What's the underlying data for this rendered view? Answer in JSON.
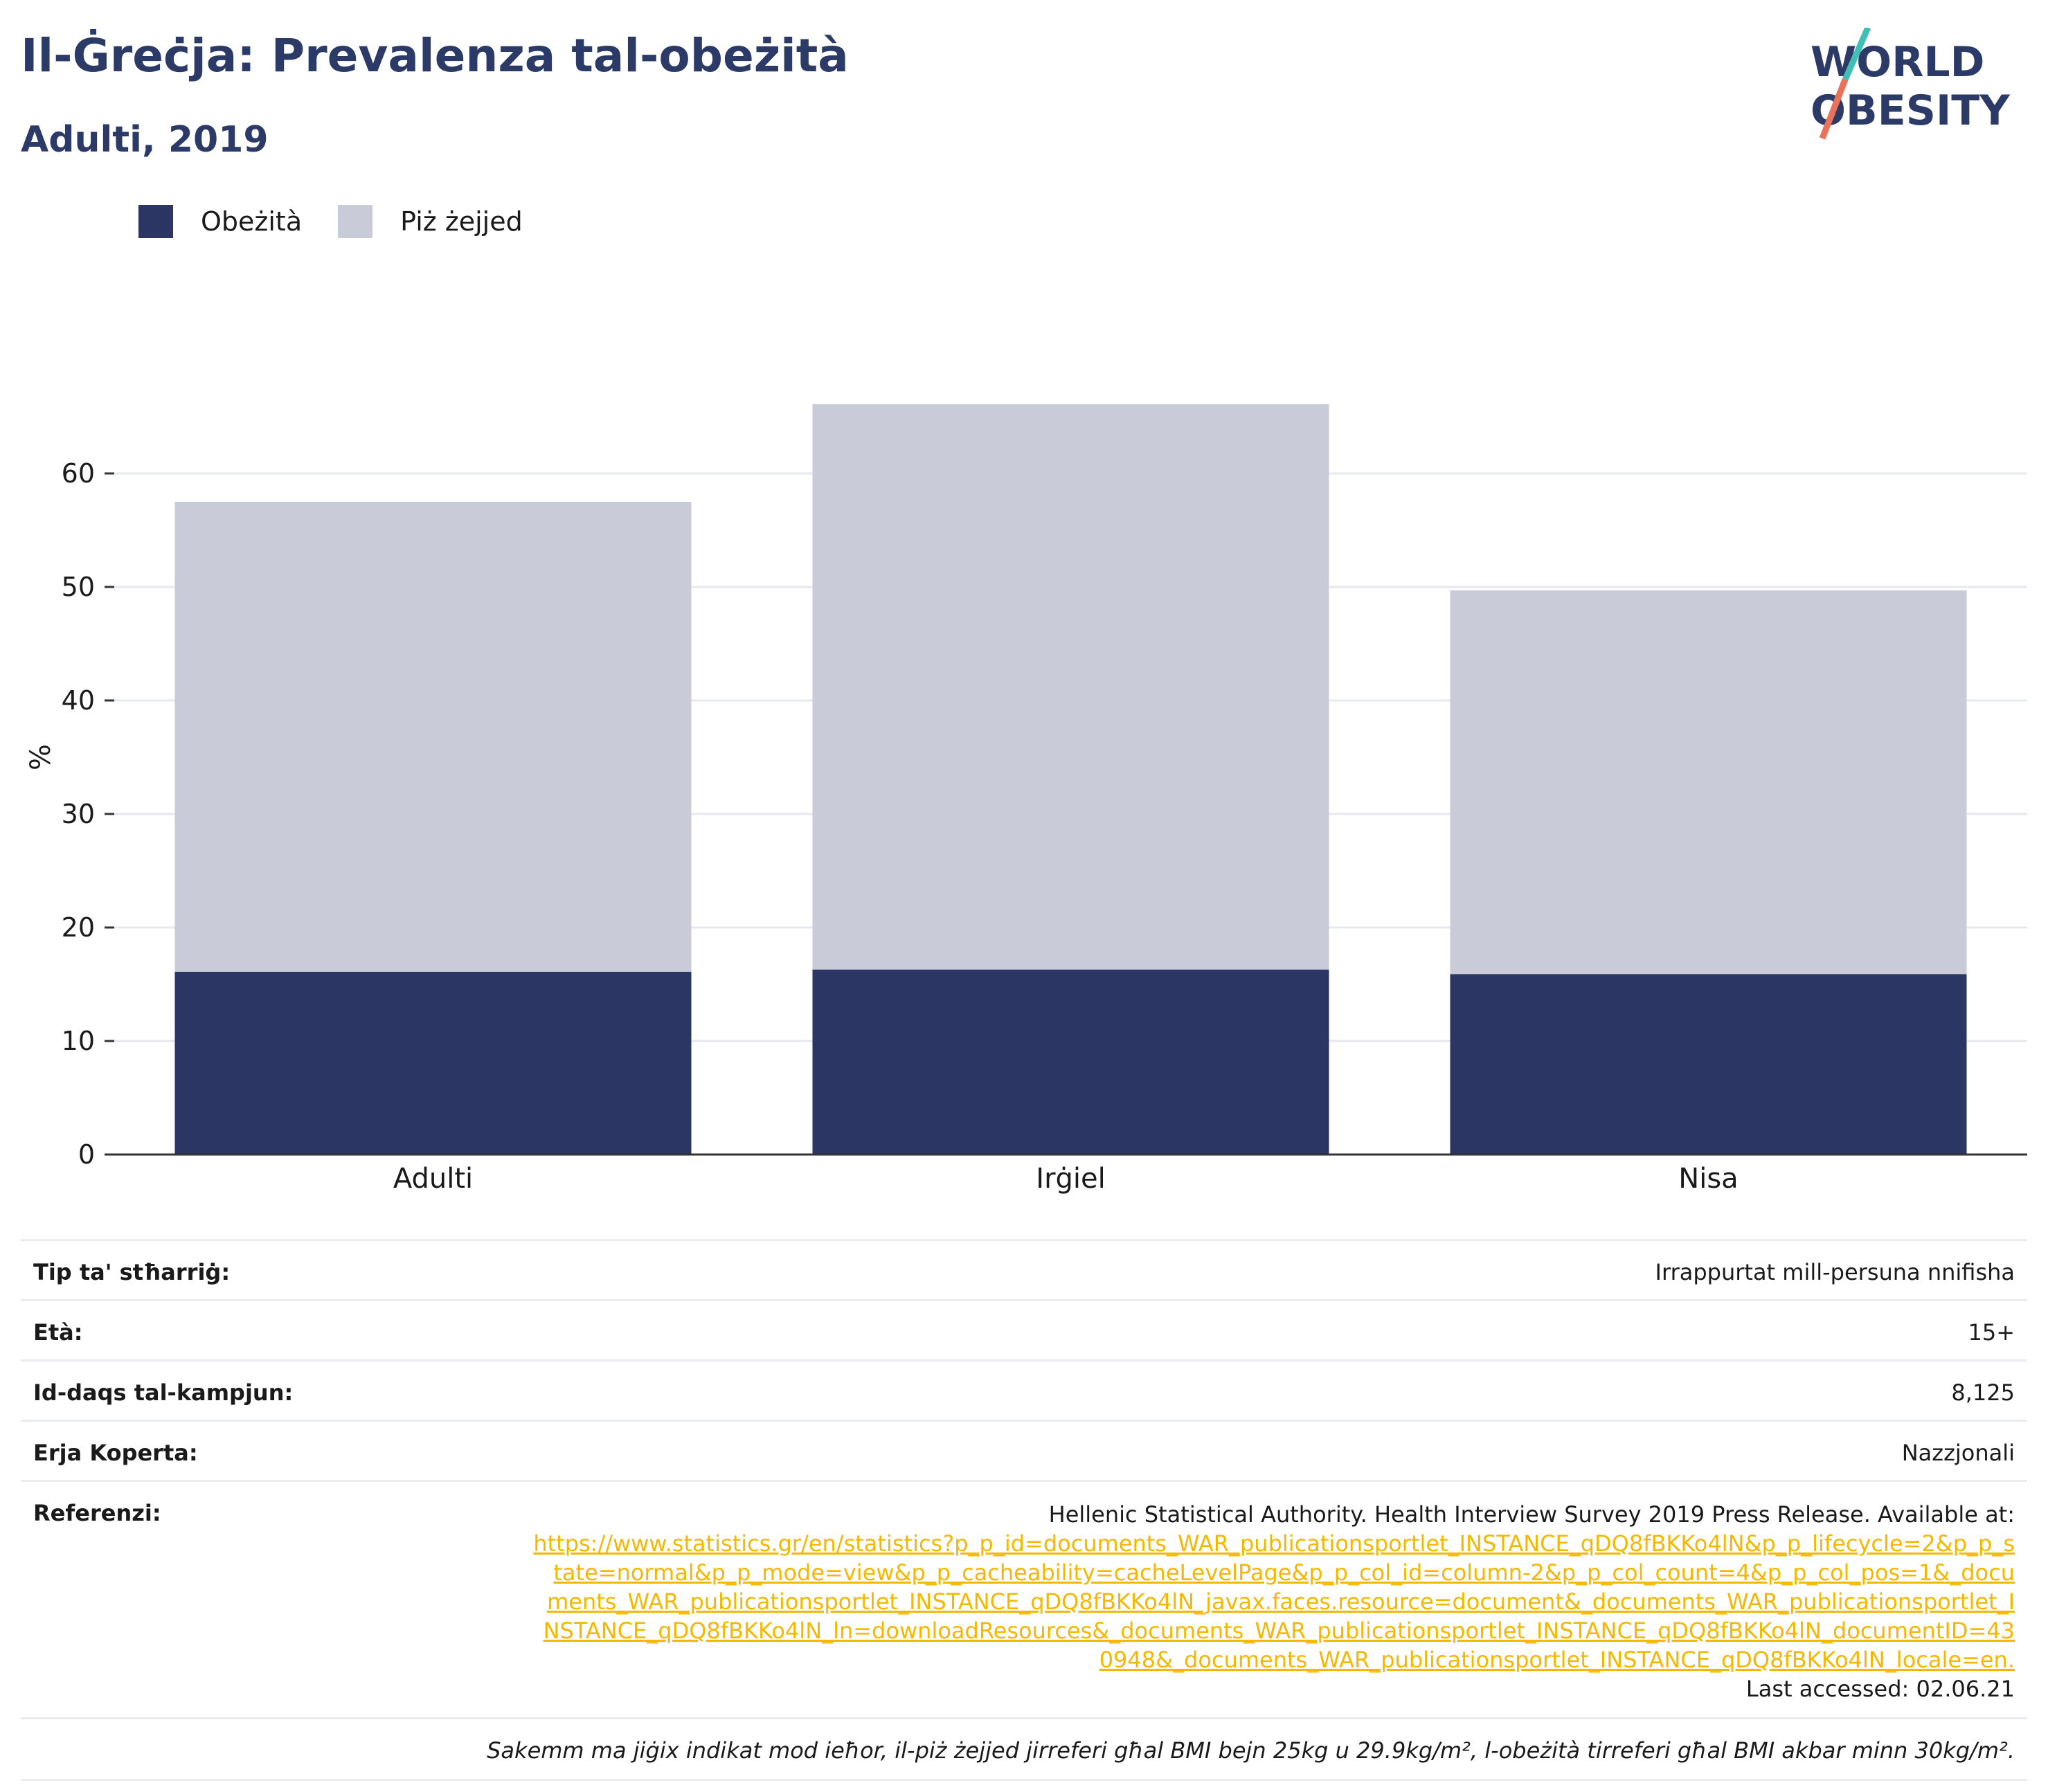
{
  "header": {
    "title": "Il-Ġreċja: Prevalenza tal-obeżità",
    "subtitle": "Adulti, 2019",
    "logo_line1": "WORLD",
    "logo_line2": "OBESITY"
  },
  "colors": {
    "obesity": "#2b3664",
    "overweight": "#c9ccd8",
    "brand_teal": "#3fbfb6",
    "brand_coral": "#e8735a",
    "link": "#f5b800"
  },
  "chart_data": {
    "type": "bar",
    "stacked": true,
    "categories": [
      "Adulti",
      "Irġiel",
      "Nisa"
    ],
    "series": [
      {
        "name": "Obeżità",
        "values": [
          16.1,
          16.3,
          15.9
        ]
      },
      {
        "name": "Piż żejjed",
        "values": [
          41.4,
          49.8,
          33.8
        ]
      }
    ],
    "ylabel": "%",
    "ylim": [
      0,
      70
    ],
    "yticks": [
      0,
      10,
      20,
      30,
      40,
      50,
      60
    ],
    "grid": true,
    "legend_position": "top-left"
  },
  "info": {
    "rows": [
      {
        "key": "Tip ta' stħarriġ:",
        "value": "Irrappurtat mill-persuna nnifisha"
      },
      {
        "key": "Età:",
        "value": "15+"
      },
      {
        "key": "Id-daqs tal-kampjun:",
        "value": "8,125"
      },
      {
        "key": "Erja Koperta:",
        "value": "Nazzjonali"
      }
    ],
    "ref_key": "Referenzi:",
    "ref_text": "Hellenic Statistical Authority. Health Interview Survey 2019 Press Release. Available at:",
    "ref_link": "https://www.statistics.gr/en/statistics?p_p_id=documents_WAR_publicationsportlet_INSTANCE_qDQ8fBKKo4lN&p_p_lifecycle=2&p_p_state=normal&p_p_mode=view&p_p_cacheability=cacheLevelPage&p_p_col_id=column-2&p_p_col_count=4&p_p_col_pos=1&_documents_WAR_publicationsportlet_INSTANCE_qDQ8fBKKo4lN_javax.faces.resource=document&_documents_WAR_publicationsportlet_INSTANCE_qDQ8fBKKo4lN_ln=downloadResources&_documents_WAR_publicationsportlet_INSTANCE_qDQ8fBKKo4lN_documentID=430948&_documents_WAR_publicationsportlet_INSTANCE_qDQ8fBKKo4lN_locale=en.",
    "ref_accessed": "Last accessed: 02.06.21",
    "note": "Sakemm ma jiġix indikat mod ieħor, il-piż żejjed jirreferi għal BMI bejn 25kg u 29.9kg/m², l-obeżità tirreferi għal BMI akbar minn 30kg/m²."
  }
}
